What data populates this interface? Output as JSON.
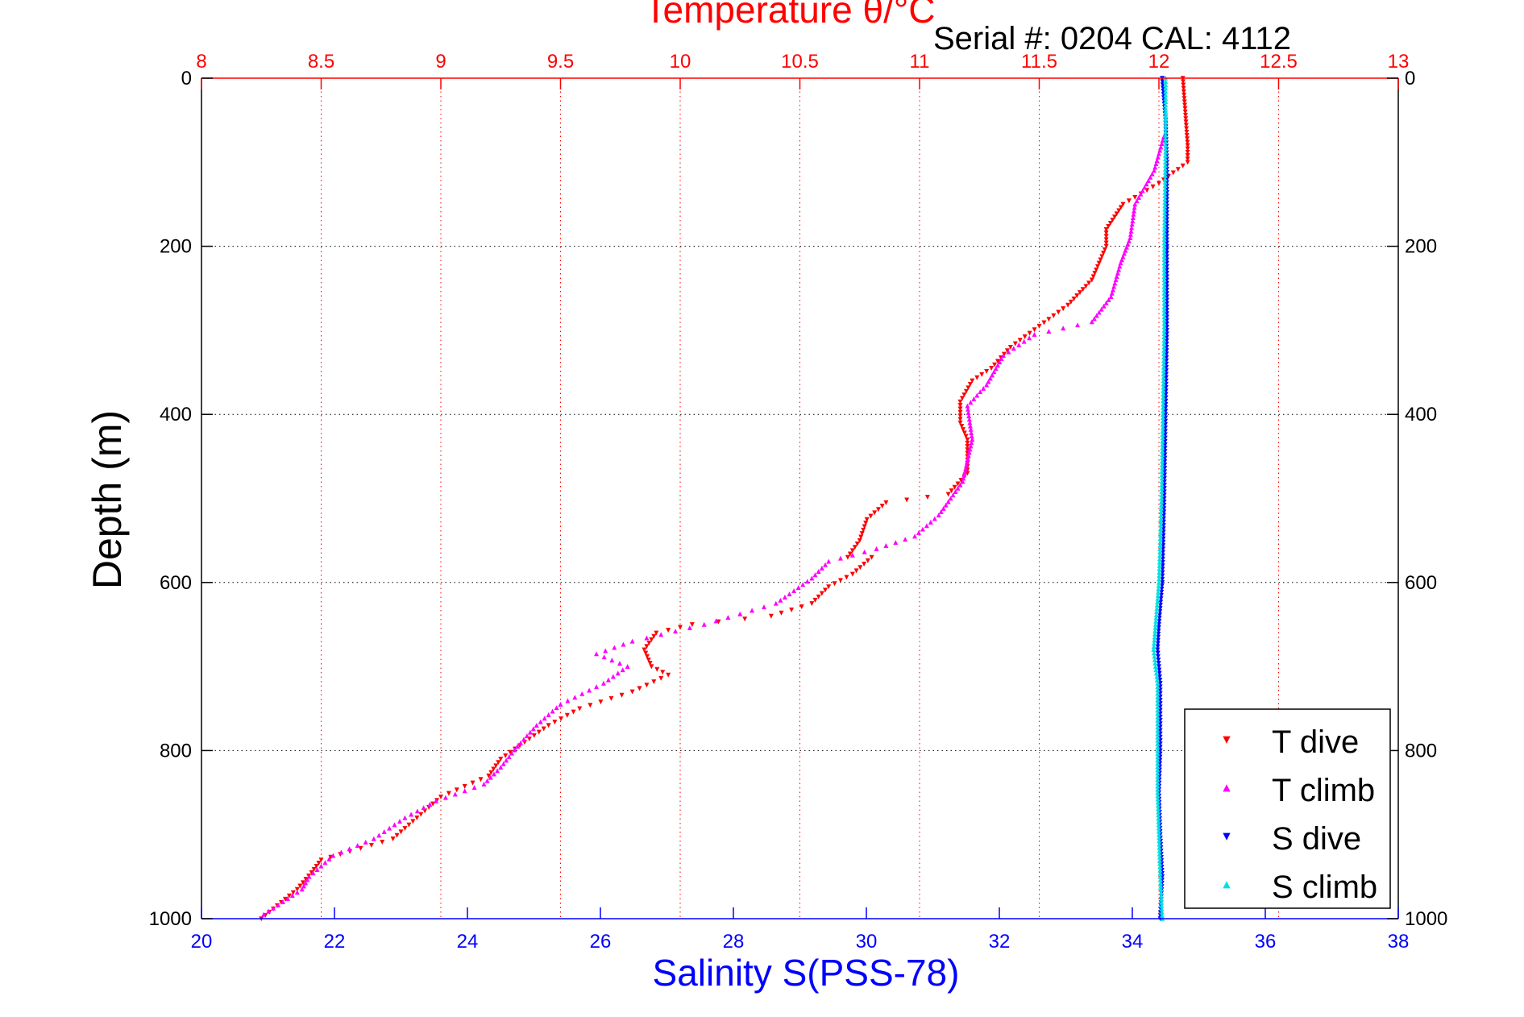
{
  "chart_data": {
    "type": "scatter",
    "title": "Temperature θ/°C",
    "subtitle": "Serial #: 0204  CAL: 4112",
    "ylabel": "Depth (m)",
    "xlabel": "Salinity S(PSS-78)",
    "y_axis": {
      "range": [
        0,
        1000
      ],
      "reversed": true,
      "ticks": [
        0,
        200,
        400,
        600,
        800,
        1000
      ],
      "tick_labels": [
        "0",
        "200",
        "400",
        "600",
        "800",
        "1000"
      ]
    },
    "temperature_axis": {
      "position": "top",
      "range": [
        8,
        13
      ],
      "ticks": [
        8,
        8.5,
        9,
        9.5,
        10,
        10.5,
        11,
        11.5,
        12,
        12.5,
        13
      ],
      "tick_labels": [
        "8",
        "8.5",
        "9",
        "9.5",
        "10",
        "10.5",
        "11",
        "11.5",
        "12",
        "12.5",
        "13"
      ],
      "color": "#ff0000"
    },
    "salinity_axis": {
      "position": "bottom",
      "range": [
        20,
        38
      ],
      "ticks": [
        20,
        22,
        24,
        26,
        28,
        30,
        32,
        34,
        36,
        38
      ],
      "tick_labels": [
        "20",
        "22",
        "24",
        "26",
        "28",
        "30",
        "32",
        "34",
        "36",
        "38"
      ],
      "color": "#0000ff"
    },
    "grid": true,
    "grid_note_axis": "temperature",
    "legend": {
      "placement": "bottom-right",
      "entries": [
        "T dive",
        "T climb",
        "S dive",
        "S climb"
      ]
    },
    "series": [
      {
        "name": "T dive",
        "axis": "temperature",
        "color": "#ff0000",
        "marker": "triangle-down",
        "points": [
          [
            12.1,
            0
          ],
          [
            12.11,
            40
          ],
          [
            12.12,
            80
          ],
          [
            12.12,
            100
          ],
          [
            12.0,
            125
          ],
          [
            11.85,
            150
          ],
          [
            11.78,
            180
          ],
          [
            11.78,
            200
          ],
          [
            11.72,
            240
          ],
          [
            11.62,
            270
          ],
          [
            11.5,
            295
          ],
          [
            11.38,
            320
          ],
          [
            11.3,
            345
          ],
          [
            11.22,
            360
          ],
          [
            11.17,
            385
          ],
          [
            11.17,
            410
          ],
          [
            11.2,
            430
          ],
          [
            11.2,
            470
          ],
          [
            11.12,
            495
          ],
          [
            10.86,
            505
          ],
          [
            10.78,
            525
          ],
          [
            10.75,
            550
          ],
          [
            10.7,
            570
          ],
          [
            10.8,
            570
          ],
          [
            10.72,
            590
          ],
          [
            10.62,
            605
          ],
          [
            10.55,
            625
          ],
          [
            10.38,
            640
          ],
          [
            10.05,
            650
          ],
          [
            9.9,
            660
          ],
          [
            9.85,
            680
          ],
          [
            9.88,
            700
          ],
          [
            9.95,
            710
          ],
          [
            9.8,
            730
          ],
          [
            9.58,
            750
          ],
          [
            9.45,
            770
          ],
          [
            9.35,
            790
          ],
          [
            9.25,
            810
          ],
          [
            9.2,
            830
          ],
          [
            9.0,
            855
          ],
          [
            8.9,
            880
          ],
          [
            8.8,
            905
          ],
          [
            8.62,
            920
          ],
          [
            8.5,
            930
          ],
          [
            8.46,
            945
          ],
          [
            8.4,
            965
          ],
          [
            8.25,
            1000
          ]
        ]
      },
      {
        "name": "T climb",
        "axis": "temperature",
        "color": "#ff00ff",
        "marker": "triangle-up",
        "points": [
          [
            12.02,
            70
          ],
          [
            11.98,
            110
          ],
          [
            11.9,
            150
          ],
          [
            11.88,
            190
          ],
          [
            11.84,
            220
          ],
          [
            11.8,
            260
          ],
          [
            11.72,
            290
          ],
          [
            11.48,
            305
          ],
          [
            11.35,
            330
          ],
          [
            11.28,
            365
          ],
          [
            11.2,
            390
          ],
          [
            11.22,
            430
          ],
          [
            11.18,
            480
          ],
          [
            11.08,
            520
          ],
          [
            10.98,
            545
          ],
          [
            10.82,
            560
          ],
          [
            10.62,
            575
          ],
          [
            10.55,
            595
          ],
          [
            10.4,
            625
          ],
          [
            10.1,
            650
          ],
          [
            9.8,
            670
          ],
          [
            9.65,
            685
          ],
          [
            9.78,
            700
          ],
          [
            9.68,
            720
          ],
          [
            9.5,
            745
          ],
          [
            9.4,
            770
          ],
          [
            9.32,
            795
          ],
          [
            9.25,
            820
          ],
          [
            9.18,
            840
          ],
          [
            8.98,
            860
          ],
          [
            8.85,
            880
          ],
          [
            8.72,
            905
          ],
          [
            8.55,
            925
          ],
          [
            8.45,
            950
          ],
          [
            8.42,
            965
          ],
          [
            8.26,
            995
          ]
        ]
      },
      {
        "name": "S dive",
        "axis": "salinity",
        "color": "#0000ff",
        "marker": "triangle-down",
        "points": [
          [
            34.45,
            0
          ],
          [
            34.5,
            50
          ],
          [
            34.52,
            100
          ],
          [
            34.52,
            200
          ],
          [
            34.52,
            300
          ],
          [
            34.5,
            400
          ],
          [
            34.48,
            500
          ],
          [
            34.45,
            600
          ],
          [
            34.4,
            650
          ],
          [
            34.38,
            680
          ],
          [
            34.42,
            720
          ],
          [
            34.42,
            800
          ],
          [
            34.4,
            850
          ],
          [
            34.42,
            900
          ],
          [
            34.45,
            950
          ],
          [
            34.42,
            1000
          ]
        ]
      },
      {
        "name": "S climb",
        "axis": "salinity",
        "color": "#00e0e0",
        "marker": "triangle-up",
        "points": [
          [
            34.5,
            0
          ],
          [
            34.5,
            80
          ],
          [
            34.48,
            200
          ],
          [
            34.48,
            300
          ],
          [
            34.46,
            400
          ],
          [
            34.44,
            500
          ],
          [
            34.4,
            600
          ],
          [
            34.35,
            650
          ],
          [
            34.32,
            680
          ],
          [
            34.38,
            720
          ],
          [
            34.38,
            800
          ],
          [
            34.38,
            850
          ],
          [
            34.4,
            900
          ],
          [
            34.42,
            950
          ],
          [
            34.45,
            1000
          ]
        ]
      }
    ]
  }
}
